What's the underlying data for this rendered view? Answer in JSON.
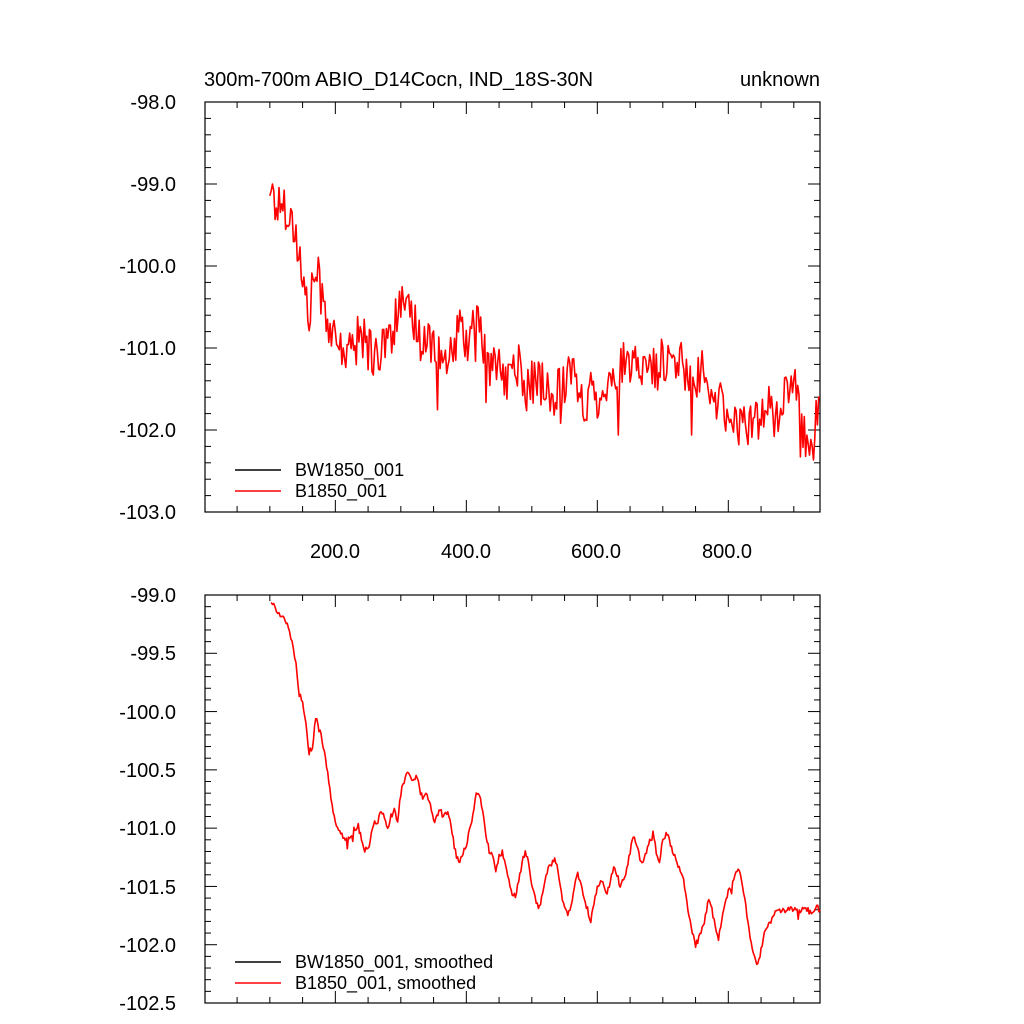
{
  "chart_data": [
    {
      "type": "line",
      "title": "300m-700m ABIO_D14Cocn, IND_18S-30N",
      "right_title": "unknown",
      "xlim": [
        1,
        940
      ],
      "ylim": [
        -103.0,
        -98.0
      ],
      "x_ticks": [
        "200.0",
        "400.0",
        "600.0",
        "800.0"
      ],
      "y_ticks": [
        "-98.0",
        "-99.0",
        "-100.0",
        "-101.0",
        "-102.0",
        "-103.0"
      ],
      "legend_position": "bottom-left",
      "grid": false,
      "series": [
        {
          "name": "BW1850_001",
          "color": "#000000",
          "x": [],
          "y": []
        },
        {
          "name": "B1850_001",
          "color": "#ff0000",
          "x": [
            100,
            110,
            120,
            130,
            140,
            150,
            160,
            170,
            180,
            190,
            200,
            210,
            220,
            230,
            240,
            250,
            260,
            270,
            280,
            290,
            300,
            310,
            320,
            330,
            340,
            350,
            360,
            370,
            380,
            390,
            400,
            410,
            420,
            430,
            440,
            450,
            460,
            470,
            480,
            490,
            500,
            510,
            520,
            530,
            540,
            550,
            560,
            570,
            580,
            590,
            600,
            610,
            620,
            630,
            640,
            650,
            660,
            670,
            680,
            690,
            700,
            710,
            720,
            730,
            740,
            750,
            760,
            770,
            780,
            790,
            800,
            810,
            820,
            830,
            840,
            850,
            860,
            870,
            880,
            890,
            900,
            910,
            920,
            930,
            940
          ],
          "y": [
            -99.0,
            -99.3,
            -99.2,
            -99.4,
            -99.6,
            -100.2,
            -100.6,
            -100.0,
            -100.4,
            -100.7,
            -101.0,
            -101.0,
            -101.1,
            -100.9,
            -100.8,
            -101.0,
            -101.1,
            -101.0,
            -100.9,
            -100.7,
            -100.5,
            -100.6,
            -100.7,
            -100.9,
            -100.9,
            -100.9,
            -101.1,
            -101.3,
            -101.0,
            -100.8,
            -100.9,
            -100.8,
            -100.7,
            -101.1,
            -101.3,
            -101.1,
            -101.5,
            -101.2,
            -101.2,
            -101.6,
            -101.4,
            -101.4,
            -101.5,
            -101.6,
            -101.5,
            -101.4,
            -101.2,
            -101.6,
            -101.7,
            -101.5,
            -101.6,
            -101.4,
            -101.5,
            -101.3,
            -101.2,
            -101.3,
            -101.2,
            -101.2,
            -101.2,
            -101.3,
            -101.1,
            -101.2,
            -101.2,
            -101.2,
            -101.3,
            -101.4,
            -101.3,
            -101.6,
            -101.6,
            -101.7,
            -101.8,
            -101.9,
            -102.0,
            -101.9,
            -101.8,
            -101.9,
            -101.7,
            -101.8,
            -101.7,
            -101.6,
            -101.4,
            -101.9,
            -102.2,
            -102.1,
            -101.6
          ]
        }
      ]
    },
    {
      "type": "line",
      "xlim": [
        1,
        940
      ],
      "ylim": [
        -102.5,
        -99.0
      ],
      "y_ticks": [
        "-99.0",
        "-99.5",
        "-100.0",
        "-100.5",
        "-101.0",
        "-101.5",
        "-102.0",
        "-102.5"
      ],
      "legend_position": "bottom-left",
      "grid": false,
      "series": [
        {
          "name": "BW1850_001, smoothed",
          "color": "#000000",
          "x": [],
          "y": []
        },
        {
          "name": "B1850_001, smoothed",
          "color": "#ff0000",
          "x": [
            102,
            110,
            120,
            125,
            130,
            140,
            145,
            150,
            155,
            160,
            165,
            170,
            175,
            180,
            185,
            190,
            195,
            200,
            205,
            210,
            215,
            220,
            225,
            230,
            235,
            240,
            245,
            250,
            255,
            260,
            265,
            270,
            275,
            280,
            285,
            290,
            295,
            300,
            305,
            310,
            315,
            320,
            325,
            330,
            335,
            340,
            345,
            350,
            355,
            360,
            365,
            370,
            375,
            380,
            385,
            390,
            395,
            400,
            405,
            410,
            415,
            420,
            425,
            430,
            435,
            440,
            445,
            450,
            455,
            460,
            465,
            470,
            475,
            480,
            485,
            490,
            495,
            500,
            505,
            510,
            515,
            520,
            525,
            530,
            535,
            540,
            545,
            550,
            555,
            560,
            565,
            570,
            575,
            580,
            585,
            590,
            595,
            600,
            605,
            610,
            615,
            620,
            625,
            630,
            635,
            640,
            645,
            650,
            655,
            660,
            665,
            670,
            675,
            680,
            685,
            690,
            695,
            700,
            705,
            710,
            715,
            720,
            725,
            730,
            735,
            740,
            745,
            750,
            755,
            760,
            765,
            770,
            775,
            780,
            785,
            790,
            795,
            800,
            805,
            810,
            815,
            820,
            825,
            830,
            835,
            840,
            845,
            850,
            855,
            860,
            865,
            870,
            875,
            880,
            885,
            890,
            895,
            900,
            905,
            910,
            915,
            920,
            925,
            930,
            935,
            940
          ],
          "y": [
            -99.05,
            -99.12,
            -99.2,
            -99.25,
            -99.3,
            -99.6,
            -99.85,
            -99.9,
            -100.1,
            -100.35,
            -100.3,
            -100.05,
            -100.15,
            -100.25,
            -100.4,
            -100.6,
            -100.8,
            -100.95,
            -101.0,
            -101.05,
            -101.1,
            -101.1,
            -101.05,
            -101.0,
            -100.98,
            -101.1,
            -101.2,
            -101.15,
            -101.05,
            -100.95,
            -100.95,
            -100.85,
            -100.9,
            -101.0,
            -100.9,
            -100.85,
            -100.95,
            -100.7,
            -100.6,
            -100.5,
            -100.55,
            -100.6,
            -100.55,
            -100.7,
            -100.75,
            -100.7,
            -100.8,
            -100.95,
            -100.9,
            -100.85,
            -100.9,
            -100.85,
            -100.95,
            -101.1,
            -101.25,
            -101.3,
            -101.2,
            -101.15,
            -101.0,
            -100.9,
            -100.7,
            -100.7,
            -100.85,
            -101.05,
            -101.2,
            -101.25,
            -101.35,
            -101.25,
            -101.2,
            -101.3,
            -101.45,
            -101.55,
            -101.6,
            -101.45,
            -101.3,
            -101.2,
            -101.3,
            -101.5,
            -101.6,
            -101.7,
            -101.6,
            -101.45,
            -101.35,
            -101.3,
            -101.25,
            -101.35,
            -101.55,
            -101.7,
            -101.75,
            -101.65,
            -101.5,
            -101.4,
            -101.45,
            -101.6,
            -101.7,
            -101.8,
            -101.65,
            -101.5,
            -101.45,
            -101.5,
            -101.55,
            -101.45,
            -101.35,
            -101.4,
            -101.5,
            -101.45,
            -101.35,
            -101.2,
            -101.05,
            -101.15,
            -101.25,
            -101.3,
            -101.2,
            -101.1,
            -101.05,
            -101.2,
            -101.3,
            -101.1,
            -101.05,
            -101.1,
            -101.2,
            -101.25,
            -101.35,
            -101.4,
            -101.55,
            -101.75,
            -101.9,
            -102.0,
            -101.95,
            -101.85,
            -101.75,
            -101.6,
            -101.7,
            -101.85,
            -101.95,
            -101.8,
            -101.65,
            -101.55,
            -101.5,
            -101.4,
            -101.35,
            -101.45,
            -101.6,
            -101.8,
            -102.0,
            -102.1,
            -102.15,
            -102.05,
            -101.9,
            -101.85,
            -101.8,
            -101.75,
            -101.68,
            -101.7,
            -101.72,
            -101.7,
            -101.68,
            -101.7,
            -101.72,
            -101.7,
            -101.68,
            -101.7,
            -101.72,
            -101.7,
            -101.68,
            -101.7
          ]
        }
      ]
    }
  ]
}
